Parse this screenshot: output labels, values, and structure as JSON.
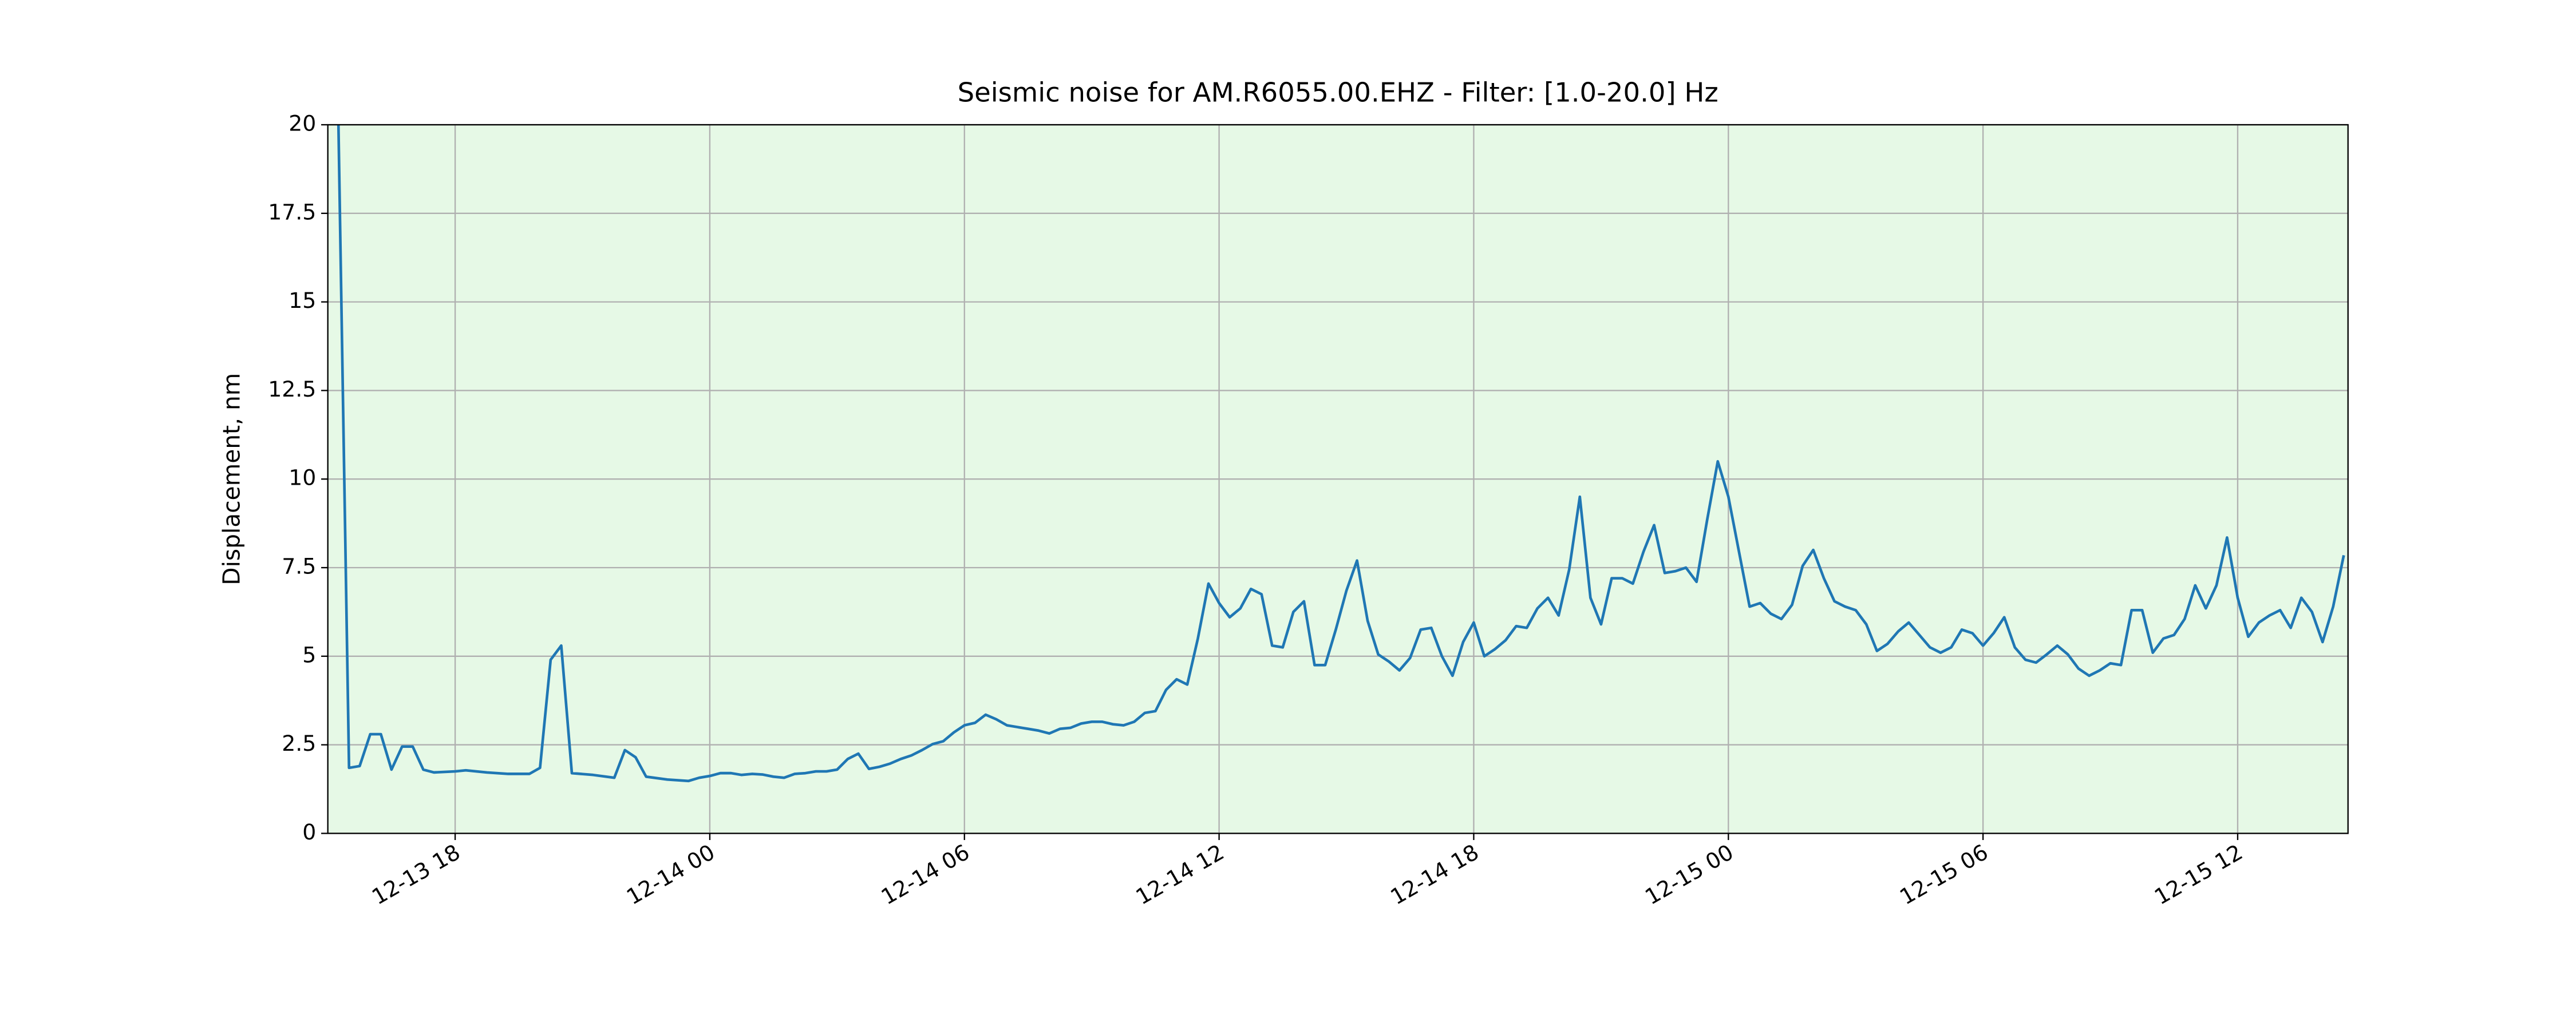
{
  "chart_data": {
    "type": "line",
    "title": "Seismic noise for AM.R6055.00.EHZ - Filter: [1.0-20.0] Hz",
    "ylabel": "Displacement, nm",
    "color": "#1f77b4",
    "background": "#e6f9e6",
    "grid": true,
    "xlim": [
      15,
      62.6
    ],
    "ylim": [
      0,
      20
    ],
    "xticks": [
      {
        "value": 18,
        "label": "12-13 18"
      },
      {
        "value": 24,
        "label": "12-14 00"
      },
      {
        "value": 30,
        "label": "12-14 06"
      },
      {
        "value": 36,
        "label": "12-14 12"
      },
      {
        "value": 42,
        "label": "12-14 18"
      },
      {
        "value": 48,
        "label": "12-15 00"
      },
      {
        "value": 54,
        "label": "12-15 06"
      },
      {
        "value": 60,
        "label": "12-15 12"
      }
    ],
    "yticks": [
      0,
      2.5,
      5,
      7.5,
      10,
      12.5,
      15,
      17.5,
      20
    ],
    "x": [
      15.25,
      15.5,
      15.75,
      16,
      16.25,
      16.5,
      16.75,
      17,
      17.25,
      17.5,
      18,
      18.25,
      18.75,
      19.25,
      19.75,
      20,
      20.25,
      20.5,
      20.75,
      21.25,
      21.75,
      22,
      22.25,
      22.5,
      23,
      23.5,
      23.75,
      24,
      24.25,
      24.5,
      24.75,
      25,
      25.25,
      25.5,
      25.75,
      26,
      26.25,
      26.5,
      26.75,
      27,
      27.25,
      27.5,
      27.75,
      28,
      28.25,
      28.5,
      28.75,
      29,
      29.25,
      29.5,
      29.75,
      30,
      30.25,
      30.5,
      30.75,
      31,
      31.25,
      31.5,
      31.75,
      32,
      32.25,
      32.5,
      32.75,
      33,
      33.25,
      33.5,
      33.75,
      34,
      34.25,
      34.5,
      34.75,
      35,
      35.25,
      35.5,
      35.75,
      36,
      36.25,
      36.5,
      36.75,
      37,
      37.25,
      37.5,
      37.75,
      38,
      38.25,
      38.5,
      38.75,
      39,
      39.25,
      39.5,
      39.75,
      40,
      40.25,
      40.5,
      40.75,
      41,
      41.25,
      41.5,
      41.75,
      42,
      42.25,
      42.5,
      42.75,
      43,
      43.25,
      43.5,
      43.75,
      44,
      44.25,
      44.5,
      44.75,
      45,
      45.25,
      45.5,
      45.75,
      46,
      46.25,
      46.5,
      46.75,
      47,
      47.25,
      47.5,
      47.75,
      48,
      48.25,
      48.5,
      48.75,
      49,
      49.25,
      49.5,
      49.75,
      50,
      50.25,
      50.5,
      50.75,
      51,
      51.25,
      51.5,
      51.75,
      52,
      52.25,
      52.5,
      52.75,
      53,
      53.25,
      53.5,
      53.75,
      54,
      54.25,
      54.5,
      54.75,
      55,
      55.25,
      55.5,
      55.75,
      56,
      56.25,
      56.5,
      56.75,
      57,
      57.25,
      57.5,
      57.75,
      58,
      58.25,
      58.5,
      58.75,
      59,
      59.25,
      59.5,
      59.75,
      60,
      60.25,
      60.5,
      60.75,
      61,
      61.25,
      61.5,
      61.75,
      62,
      62.25,
      62.5
    ],
    "values": [
      20,
      1.85,
      1.9,
      2.8,
      2.8,
      1.8,
      2.45,
      2.45,
      1.8,
      1.72,
      1.75,
      1.78,
      1.72,
      1.68,
      1.68,
      1.85,
      4.9,
      5.3,
      1.7,
      1.65,
      1.57,
      2.35,
      2.15,
      1.6,
      1.52,
      1.48,
      1.57,
      1.62,
      1.7,
      1.7,
      1.65,
      1.68,
      1.66,
      1.6,
      1.57,
      1.68,
      1.7,
      1.75,
      1.75,
      1.8,
      2.1,
      2.25,
      1.82,
      1.88,
      1.97,
      2.1,
      2.2,
      2.35,
      2.52,
      2.6,
      2.85,
      3.05,
      3.12,
      3.35,
      3.22,
      3.05,
      3,
      2.95,
      2.9,
      2.82,
      2.95,
      2.98,
      3.1,
      3.15,
      3.15,
      3.08,
      3.05,
      3.15,
      3.4,
      3.45,
      4.05,
      4.35,
      4.2,
      5.5,
      7.05,
      6.5,
      6.1,
      6.35,
      6.9,
      6.75,
      5.3,
      5.25,
      6.25,
      6.55,
      4.75,
      4.75,
      5.75,
      6.85,
      7.7,
      6,
      5.05,
      4.85,
      4.6,
      4.95,
      5.75,
      5.8,
      5,
      4.45,
      5.4,
      5.95,
      5,
      5.2,
      5.45,
      5.85,
      5.8,
      6.35,
      6.65,
      6.15,
      7.45,
      9.5,
      6.65,
      5.9,
      7.2,
      7.2,
      7.05,
      7.95,
      8.7,
      7.35,
      7.4,
      7.5,
      7.1,
      8.85,
      10.5,
      9.5,
      7.95,
      6.4,
      6.5,
      6.2,
      6.05,
      6.45,
      7.55,
      8,
      7.2,
      6.55,
      6.4,
      6.3,
      5.9,
      5.15,
      5.35,
      5.7,
      5.95,
      5.6,
      5.25,
      5.1,
      5.25,
      5.75,
      5.65,
      5.3,
      5.65,
      6.1,
      5.25,
      4.9,
      4.82,
      5.05,
      5.3,
      5.05,
      4.65,
      4.45,
      4.6,
      4.8,
      4.75,
      6.3,
      6.3,
      5.1,
      5.5,
      5.6,
      6.05,
      7,
      6.35,
      7,
      8.35,
      6.65,
      5.55,
      5.95,
      6.15,
      6.3,
      5.8,
      6.65,
      6.25,
      5.4,
      6.4,
      7.85
    ]
  }
}
